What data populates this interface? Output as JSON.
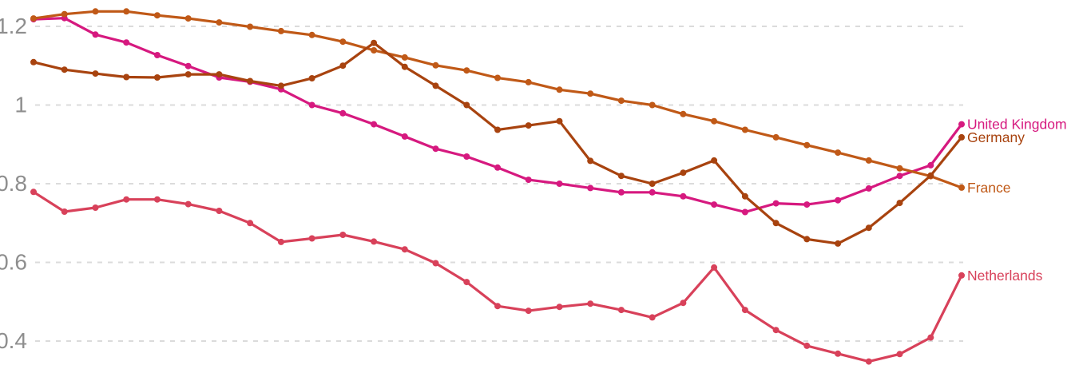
{
  "chart_data": {
    "type": "line",
    "title": "",
    "x_axis": {
      "labels_visible": false,
      "num_points": 31
    },
    "y_axis": {
      "ticks": [
        {
          "value": 1.2,
          "label": "1.2"
        },
        {
          "value": 1.0,
          "label": "1"
        },
        {
          "value": 0.8,
          "label": "0.8"
        },
        {
          "value": 0.6,
          "label": "0.6"
        },
        {
          "value": 0.4,
          "label": "0.4"
        }
      ],
      "grid": "dashed-horizontal",
      "tick_color": "#8e8e8e",
      "grid_color": "#dbdbdb"
    },
    "legend": {
      "position": "end-of-line-labels"
    },
    "draw_order": [
      "Netherlands",
      "United Kingdom",
      "France",
      "Germany"
    ],
    "series": [
      {
        "name": "United Kingdom",
        "color": "#d6197f",
        "values": [
          1.218,
          1.221,
          1.179,
          1.159,
          1.127,
          1.099,
          1.07,
          1.059,
          1.04,
          1.0,
          0.979,
          0.951,
          0.92,
          0.889,
          0.869,
          0.841,
          0.81,
          0.8,
          0.789,
          0.778,
          0.778,
          0.768,
          0.747,
          0.728,
          0.75,
          0.747,
          0.758,
          0.788,
          0.82,
          0.847,
          0.951
        ]
      },
      {
        "name": "Germany",
        "color": "#a8430f",
        "values": [
          1.109,
          1.09,
          1.08,
          1.071,
          1.07,
          1.078,
          1.078,
          1.061,
          1.049,
          1.068,
          1.1,
          1.158,
          1.097,
          1.049,
          1.0,
          0.937,
          0.948,
          0.959,
          0.858,
          0.82,
          0.8,
          0.828,
          0.859,
          0.768,
          0.7,
          0.659,
          0.648,
          0.688,
          0.751,
          0.821,
          0.918
        ]
      },
      {
        "name": "France",
        "color": "#c05917",
        "values": [
          1.22,
          1.231,
          1.238,
          1.238,
          1.228,
          1.22,
          1.21,
          1.199,
          1.188,
          1.178,
          1.161,
          1.139,
          1.121,
          1.101,
          1.088,
          1.069,
          1.058,
          1.039,
          1.029,
          1.011,
          1.0,
          0.977,
          0.959,
          0.937,
          0.918,
          0.898,
          0.879,
          0.859,
          0.839,
          0.819,
          0.79
        ]
      },
      {
        "name": "Netherlands",
        "color": "#d8415a",
        "values": [
          0.779,
          0.729,
          0.739,
          0.76,
          0.76,
          0.748,
          0.731,
          0.7,
          0.652,
          0.661,
          0.67,
          0.653,
          0.633,
          0.598,
          0.55,
          0.489,
          0.477,
          0.487,
          0.495,
          0.479,
          0.46,
          0.497,
          0.587,
          0.479,
          0.428,
          0.388,
          0.368,
          0.348,
          0.367,
          0.409,
          0.567
        ]
      }
    ]
  }
}
